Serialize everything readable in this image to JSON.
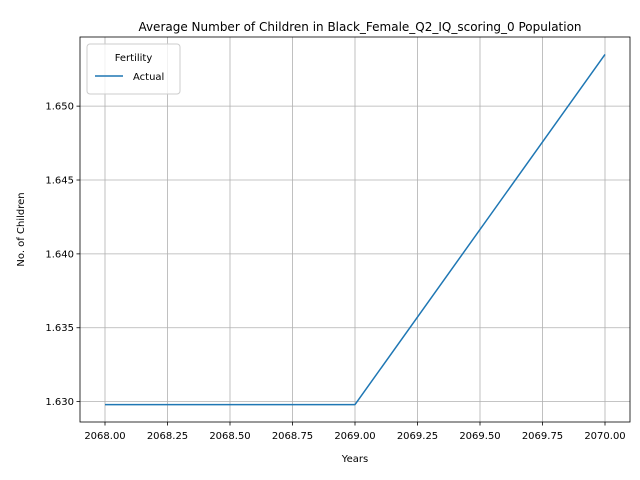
{
  "chart_data": {
    "type": "line",
    "title": "Average Number of Children in Black_Female_Q2_IQ_scoring_0 Population",
    "xlabel": "Years",
    "ylabel": "No. of Children",
    "x": [
      2068,
      2069,
      2070
    ],
    "series": [
      {
        "name": "Actual",
        "values": [
          1.6298,
          1.6298,
          1.6535
        ],
        "color": "#1f77b4"
      }
    ],
    "xlim": [
      2067.9,
      2070.1
    ],
    "ylim": [
      1.62862,
      1.65468
    ],
    "xticks": [
      "2068.00",
      "2068.25",
      "2068.50",
      "2068.75",
      "2069.00",
      "2069.25",
      "2069.50",
      "2069.75",
      "2070.00"
    ],
    "xtick_values": [
      2068.0,
      2068.25,
      2068.5,
      2068.75,
      2069.0,
      2069.25,
      2069.5,
      2069.75,
      2070.0
    ],
    "yticks": [
      "1.630",
      "1.635",
      "1.640",
      "1.645",
      "1.650"
    ],
    "ytick_values": [
      1.63,
      1.635,
      1.64,
      1.645,
      1.65
    ],
    "grid": true,
    "legend": {
      "title": "Fertility",
      "placement": "upper-left"
    }
  }
}
